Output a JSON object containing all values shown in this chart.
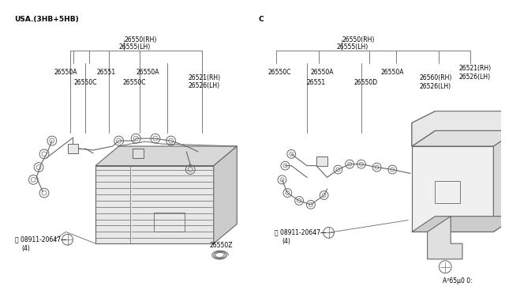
{
  "bg_color": "#ffffff",
  "line_color": "#666666",
  "text_color": "#333333",
  "title_bottom_right": "A²65µ0 0:",
  "section_left_label": "USA.(3HB+5HB)",
  "section_right_label": "C",
  "font_size": 6.0
}
